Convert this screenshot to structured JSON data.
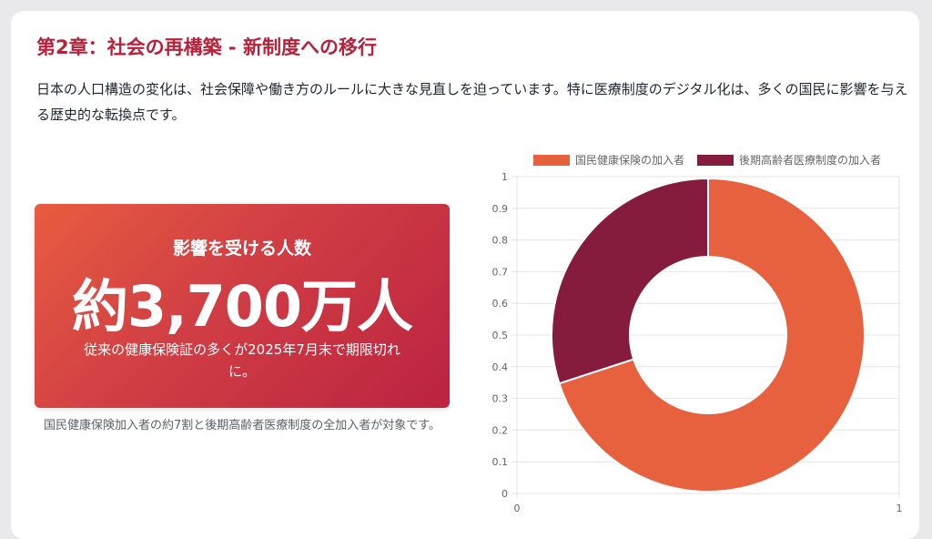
{
  "section": {
    "title": "第2章：社会の再構築 - 新制度への移行",
    "intro": "日本の人口構造の変化は、社会保障や働き方のルールに大きな見直しを迫っています。特に医療制度のデジタル化は、多くの国民に影響を与える歴史的な転換点です。"
  },
  "impact_card": {
    "label": "影響を受ける人数",
    "number": "約3,700万人",
    "note": "従来の健康保険証の多くが2025年7月末で期限切れに。",
    "caption": "国民健康保険加入者の約7割と後期高齢者医療制度の全加入者が対象です。"
  },
  "chart_data": {
    "type": "pie",
    "variant": "doughnut",
    "title": "",
    "series": [
      {
        "name": "国民健康保険の加入者",
        "value": 70,
        "color": "#e8613f"
      },
      {
        "name": "後期高齢者医療制度の加入者",
        "value": 30,
        "color": "#861c3d"
      }
    ],
    "legend_position": "top",
    "grid": true,
    "y_ticks": [
      "0",
      "0.1",
      "0.2",
      "0.3",
      "0.4",
      "0.5",
      "0.6",
      "0.7",
      "0.8",
      "0.9",
      "1"
    ],
    "x_ticks": [
      "0",
      "1"
    ],
    "ylim": [
      0,
      1
    ],
    "xlim": [
      0,
      1
    ]
  }
}
